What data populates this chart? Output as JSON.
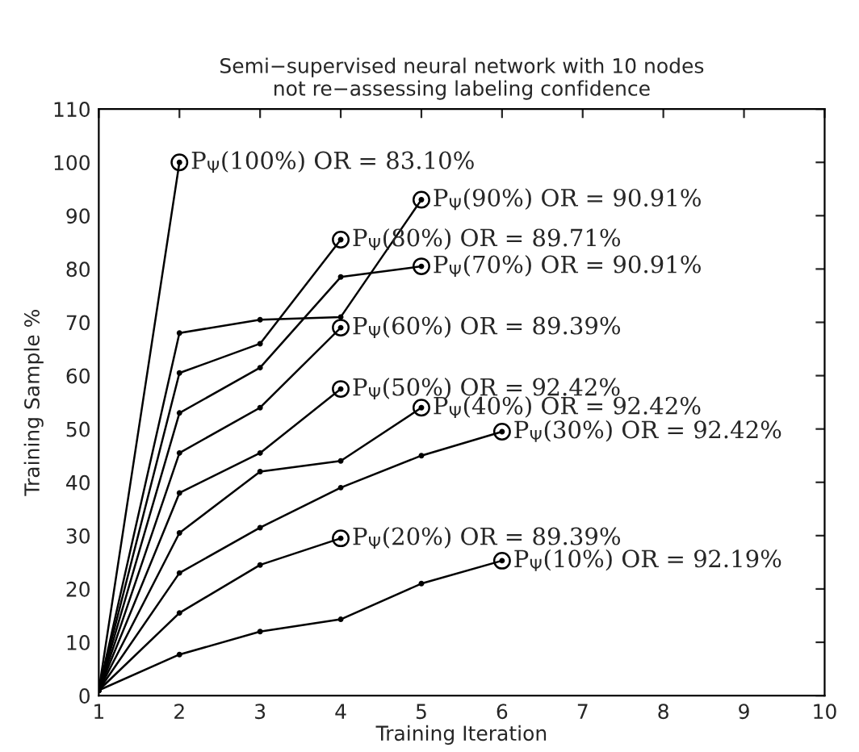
{
  "chart_data": {
    "type": "line",
    "title": "Semi−supervised neural network with 10 nodes\nnot re−assessing labeling confidence",
    "xlabel": "Training Iteration",
    "ylabel": "Training Sample %",
    "xlim": [
      1,
      10
    ],
    "xticks": [
      1,
      2,
      3,
      4,
      5,
      6,
      7,
      8,
      9,
      10
    ],
    "ylim": [
      0,
      110
    ],
    "yticks": [
      0,
      10,
      20,
      30,
      40,
      50,
      60,
      70,
      80,
      90,
      100,
      110
    ],
    "grid": false,
    "marker": "circle",
    "line_style": "solid",
    "series": [
      {
        "color": "#000000",
        "x": [
          1,
          2
        ],
        "values": [
          1,
          100
        ]
      },
      {
        "color": "#000000",
        "x": [
          1,
          2,
          3,
          4,
          5
        ],
        "values": [
          1,
          68,
          70.5,
          71,
          93
        ]
      },
      {
        "color": "#000000",
        "x": [
          1,
          2,
          3,
          4
        ],
        "values": [
          1,
          60.5,
          66,
          85.5
        ]
      },
      {
        "color": "#000000",
        "x": [
          1,
          2,
          3,
          4,
          5
        ],
        "values": [
          1,
          53,
          61.5,
          78.5,
          80.5
        ]
      },
      {
        "color": "#000000",
        "x": [
          1,
          2,
          3,
          4
        ],
        "values": [
          1,
          45.5,
          54,
          69
        ]
      },
      {
        "color": "#000000",
        "x": [
          1,
          2,
          3,
          4
        ],
        "values": [
          1,
          38,
          45.5,
          57.5
        ]
      },
      {
        "color": "#000000",
        "x": [
          1,
          2,
          3,
          4,
          5
        ],
        "values": [
          1,
          30.5,
          42,
          44,
          54
        ]
      },
      {
        "color": "#000000",
        "x": [
          1,
          2,
          3,
          4,
          5,
          6
        ],
        "values": [
          1,
          23,
          31.5,
          39,
          45,
          49.5
        ]
      },
      {
        "color": "#000000",
        "x": [
          1,
          2,
          3,
          4
        ],
        "values": [
          1,
          15.5,
          24.5,
          29.5
        ]
      },
      {
        "color": "#000000",
        "x": [
          1,
          2,
          3,
          4,
          5,
          6
        ],
        "values": [
          1,
          7.7,
          12,
          14.3,
          21,
          25.3
        ]
      }
    ],
    "annotations": [
      {
        "text": "P$_{Ψ}$(100%) OR = 83.10%",
        "x": 2,
        "y": 100
      },
      {
        "text": "P$_{Ψ}$(90%) OR = 90.91%",
        "x": 5,
        "y": 93
      },
      {
        "text": "P$_{Ψ}$(80%) OR = 89.71%",
        "x": 4,
        "y": 85.5
      },
      {
        "text": "P$_{Ψ}$(70%) OR = 90.91%",
        "x": 5,
        "y": 80.5
      },
      {
        "text": "P$_{Ψ}$(60%) OR = 89.39%",
        "x": 4,
        "y": 69
      },
      {
        "text": "P$_{Ψ}$(50%) OR = 92.42%",
        "x": 4,
        "y": 57.5
      },
      {
        "text": "P$_{Ψ}$(40%) OR = 92.42%",
        "x": 5,
        "y": 54
      },
      {
        "text": "P$_{Ψ}$(30%) OR = 92.42%",
        "x": 6,
        "y": 49.5
      },
      {
        "text": "P$_{Ψ}$(20%) OR = 89.39%",
        "x": 4,
        "y": 29.5
      },
      {
        "text": "P$_{Ψ}$(10%) OR = 92.19%",
        "x": 6,
        "y": 25.3
      }
    ]
  }
}
